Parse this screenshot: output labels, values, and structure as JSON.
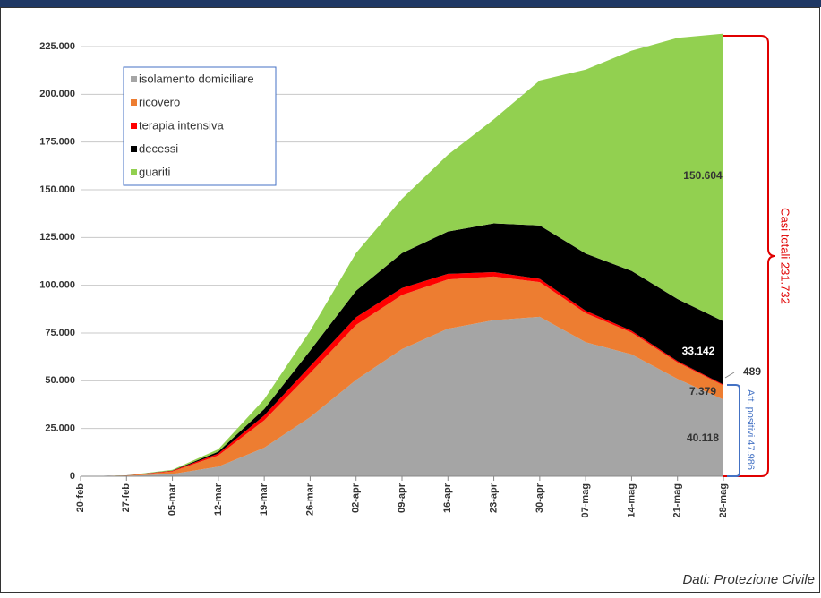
{
  "chart_data": {
    "type": "stacked-area",
    "categories": [
      "20-feb",
      "27-feb",
      "05-mar",
      "12-mar",
      "19-mar",
      "26-mar",
      "02-apr",
      "09-apr",
      "16-apr",
      "23-apr",
      "30-apr",
      "07-mag",
      "14-mag",
      "21-mag",
      "28-mag"
    ],
    "series": [
      {
        "name": "isolamento domiciliare",
        "color": "#a5a5a5",
        "values": [
          0,
          231,
          1155,
          5036,
          14935,
          30920,
          50456,
          66534,
          77257,
          81710,
          83504,
          70187,
          63810,
          50966,
          40118
        ],
        "value_labels": [
          null,
          null,
          null,
          null,
          null,
          null,
          null,
          null,
          null,
          null,
          null,
          null,
          null,
          null,
          "40.118"
        ]
      },
      {
        "name": "ricovero",
        "color": "#ed7d31",
        "values": [
          0,
          162,
          1346,
          5838,
          14363,
          23112,
          28741,
          28399,
          25786,
          22871,
          18149,
          15174,
          11453,
          8695,
          7379
        ],
        "value_labels": [
          null,
          null,
          null,
          null,
          null,
          null,
          null,
          null,
          null,
          null,
          null,
          null,
          null,
          null,
          "7.379"
        ]
      },
      {
        "name": "terapia intensiva",
        "color": "#ff0000",
        "values": [
          0,
          36,
          351,
          1028,
          2498,
          3612,
          4053,
          3605,
          2936,
          2267,
          1694,
          1311,
          893,
          640,
          489
        ],
        "value_labels": [
          null,
          null,
          null,
          null,
          null,
          null,
          null,
          null,
          null,
          null,
          null,
          null,
          null,
          null,
          "489"
        ]
      },
      {
        "name": "decessi",
        "color": "#000000",
        "values": [
          0,
          17,
          148,
          1016,
          3405,
          8165,
          13915,
          18279,
          22170,
          25549,
          27967,
          29958,
          31368,
          32486,
          33142
        ],
        "value_labels": [
          null,
          null,
          null,
          null,
          null,
          null,
          null,
          null,
          null,
          null,
          null,
          null,
          null,
          null,
          "33.142"
        ]
      },
      {
        "name": "guariti",
        "color": "#92d050",
        "values": [
          0,
          46,
          414,
          1258,
          5129,
          10361,
          19758,
          28470,
          40164,
          54543,
          75945,
          96276,
          115288,
          136720,
          150604
        ],
        "value_labels": [
          null,
          null,
          null,
          null,
          null,
          null,
          null,
          null,
          null,
          null,
          null,
          null,
          null,
          null,
          "150.604"
        ]
      }
    ],
    "ylim": [
      0,
      240000
    ],
    "yticks": [
      {
        "value": 0,
        "label": "0"
      },
      {
        "value": 25000,
        "label": "25.000"
      },
      {
        "value": 50000,
        "label": "50.000"
      },
      {
        "value": 75000,
        "label": "75.000"
      },
      {
        "value": 100000,
        "label": "100.000"
      },
      {
        "value": 125000,
        "label": "125.000"
      },
      {
        "value": 150000,
        "label": "150.000"
      },
      {
        "value": 175000,
        "label": "175.000"
      },
      {
        "value": 200000,
        "label": "200.000"
      },
      {
        "value": 225000,
        "label": "225.000"
      }
    ],
    "grid": true,
    "annotations": {
      "total": "Casi totali 231.732",
      "active": "Att. positivi 47.986"
    },
    "source": "Dati: Protezione Civile"
  }
}
